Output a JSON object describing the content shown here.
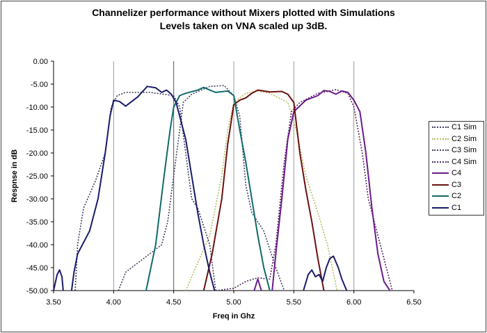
{
  "chart_data": {
    "type": "line",
    "title": [
      "Channelizer performance without Mixers plotted with Simulations",
      "Levels  taken on VNA scaled up 3dB."
    ],
    "xlabel": "Freq in Ghz",
    "ylabel": "Respnse in dB",
    "xlim": [
      3.5,
      6.5
    ],
    "ylim": [
      -50,
      0
    ],
    "xticks": [
      "3.50",
      "4.00",
      "4.50",
      "5.00",
      "5.50",
      "6.00",
      "6.50"
    ],
    "yticks": [
      "0.00",
      "-5.00",
      "-10.00",
      "-15.00",
      "-20.00",
      "-25.00",
      "-30.00",
      "-35.00",
      "-40.00",
      "-45.00",
      "-50.00"
    ],
    "vertical_gridlines": [
      4.0,
      4.5,
      5.0,
      5.5,
      6.0
    ],
    "legend_position": "right",
    "series": [
      {
        "name": "C1 Sim",
        "style": "dotted",
        "color": "#3a3a5a",
        "segments": [
          [
            [
              3.68,
              -50
            ],
            [
              3.7,
              -40
            ],
            [
              3.75,
              -32
            ],
            [
              3.85,
              -26
            ],
            [
              3.93,
              -20
            ],
            [
              3.98,
              -10
            ],
            [
              4.03,
              -7.5
            ],
            [
              4.1,
              -6.8
            ],
            [
              4.3,
              -6.8
            ],
            [
              4.5,
              -7.5
            ],
            [
              4.55,
              -10
            ],
            [
              4.6,
              -20
            ],
            [
              4.65,
              -30
            ],
            [
              4.7,
              -32
            ],
            [
              4.8,
              -40
            ],
            [
              4.85,
              -50
            ]
          ]
        ]
      },
      {
        "name": "C2 Sim",
        "style": "dotted",
        "color": "#b8b860",
        "segments": [
          [
            [
              4.6,
              -50
            ],
            [
              4.7,
              -44
            ],
            [
              4.8,
              -38
            ],
            [
              4.9,
              -25
            ],
            [
              4.95,
              -15
            ],
            [
              5.0,
              -9
            ],
            [
              5.1,
              -7
            ],
            [
              5.2,
              -6.5
            ],
            [
              5.3,
              -7
            ],
            [
              5.45,
              -9
            ],
            [
              5.52,
              -15
            ],
            [
              5.6,
              -25
            ],
            [
              5.7,
              -33
            ],
            [
              5.78,
              -40
            ],
            [
              5.82,
              -45
            ],
            [
              5.86,
              -50
            ]
          ]
        ]
      },
      {
        "name": "C3 Sim",
        "style": "dotted",
        "color": "#404060",
        "segments": [
          [
            [
              4.04,
              -50
            ],
            [
              4.1,
              -46
            ],
            [
              4.2,
              -44
            ],
            [
              4.4,
              -40
            ],
            [
              4.45,
              -35
            ],
            [
              4.55,
              -15
            ],
            [
              4.58,
              -9
            ],
            [
              4.65,
              -7.2
            ],
            [
              4.8,
              -5.5
            ],
            [
              4.92,
              -5.3
            ],
            [
              5.0,
              -7.5
            ],
            [
              5.05,
              -12
            ],
            [
              5.1,
              -27
            ],
            [
              5.15,
              -33
            ],
            [
              5.25,
              -37
            ],
            [
              5.35,
              -45
            ],
            [
              5.42,
              -50
            ]
          ]
        ]
      },
      {
        "name": "C4 Sim",
        "style": "dotted",
        "color": "#502a60",
        "segments": [
          [
            [
              4.85,
              -50
            ],
            [
              5.0,
              -49.5
            ],
            [
              5.1,
              -48
            ],
            [
              5.2,
              -47.2
            ],
            [
              5.3,
              -47.5
            ],
            [
              5.35,
              -40
            ],
            [
              5.42,
              -22
            ],
            [
              5.48,
              -11
            ],
            [
              5.55,
              -9
            ],
            [
              5.7,
              -7
            ],
            [
              5.85,
              -6.2
            ],
            [
              5.95,
              -7
            ],
            [
              6.0,
              -10
            ],
            [
              6.07,
              -20
            ],
            [
              6.12,
              -30
            ],
            [
              6.2,
              -38
            ],
            [
              6.27,
              -45
            ],
            [
              6.32,
              -50
            ]
          ]
        ]
      },
      {
        "name": "C4",
        "style": "solid",
        "color": "#6a1a8a",
        "segments": [
          [
            [
              5.17,
              -50
            ],
            [
              5.2,
              -47.5
            ],
            [
              5.23,
              -50
            ]
          ],
          [
            [
              5.32,
              -50
            ],
            [
              5.35,
              -42
            ],
            [
              5.4,
              -30
            ],
            [
              5.45,
              -17
            ],
            [
              5.5,
              -11
            ],
            [
              5.6,
              -8.5
            ],
            [
              5.7,
              -7.5
            ],
            [
              5.75,
              -6.4
            ],
            [
              5.8,
              -6.6
            ],
            [
              5.85,
              -7.2
            ],
            [
              5.9,
              -6.5
            ],
            [
              5.95,
              -6.8
            ],
            [
              6.0,
              -8.5
            ],
            [
              6.05,
              -11
            ],
            [
              6.1,
              -20
            ],
            [
              6.15,
              -32
            ],
            [
              6.2,
              -42
            ],
            [
              6.25,
              -48
            ],
            [
              6.3,
              -50
            ]
          ]
        ]
      },
      {
        "name": "C3",
        "style": "solid",
        "color": "#6a1010",
        "segments": [
          [
            [
              4.75,
              -50
            ],
            [
              4.82,
              -42
            ],
            [
              4.9,
              -30
            ],
            [
              4.95,
              -18
            ],
            [
              5.0,
              -9.5
            ],
            [
              5.05,
              -8.5
            ],
            [
              5.1,
              -8
            ],
            [
              5.15,
              -7
            ],
            [
              5.2,
              -6.3
            ],
            [
              5.25,
              -6.5
            ],
            [
              5.3,
              -6.7
            ],
            [
              5.4,
              -6.6
            ],
            [
              5.45,
              -7.2
            ],
            [
              5.5,
              -9
            ],
            [
              5.55,
              -20
            ],
            [
              5.6,
              -28
            ],
            [
              5.65,
              -35
            ],
            [
              5.7,
              -43
            ],
            [
              5.75,
              -50
            ]
          ]
        ]
      },
      {
        "name": "C2",
        "style": "solid",
        "color": "#106a6a",
        "segments": [
          [
            [
              4.27,
              -50
            ],
            [
              4.35,
              -40
            ],
            [
              4.42,
              -25
            ],
            [
              4.47,
              -15
            ],
            [
              4.5,
              -10
            ],
            [
              4.55,
              -7.5
            ],
            [
              4.6,
              -7
            ],
            [
              4.7,
              -6.3
            ],
            [
              4.75,
              -5.7
            ],
            [
              4.8,
              -6.3
            ],
            [
              4.85,
              -6.8
            ],
            [
              4.95,
              -6.5
            ],
            [
              5.0,
              -7.5
            ],
            [
              5.05,
              -15
            ],
            [
              5.1,
              -22
            ],
            [
              5.15,
              -30
            ],
            [
              5.2,
              -38
            ],
            [
              5.25,
              -45
            ],
            [
              5.3,
              -50
            ]
          ]
        ]
      },
      {
        "name": "C1",
        "style": "solid",
        "color": "#1a1a6a",
        "segments": [
          [
            [
              3.5,
              -50
            ],
            [
              3.53,
              -46.5
            ],
            [
              3.55,
              -45.5
            ],
            [
              3.57,
              -47
            ],
            [
              3.58,
              -50
            ]
          ],
          [
            [
              3.65,
              -50
            ],
            [
              3.67,
              -46
            ],
            [
              3.7,
              -42
            ],
            [
              3.8,
              -37
            ],
            [
              3.87,
              -30
            ],
            [
              3.93,
              -20
            ],
            [
              3.97,
              -12
            ],
            [
              4.0,
              -8.5
            ],
            [
              4.05,
              -8.8
            ],
            [
              4.1,
              -9.8
            ],
            [
              4.15,
              -8.8
            ],
            [
              4.2,
              -7.8
            ],
            [
              4.28,
              -5.5
            ],
            [
              4.35,
              -5.8
            ],
            [
              4.4,
              -6.8
            ],
            [
              4.44,
              -6.3
            ],
            [
              4.48,
              -7.2
            ],
            [
              4.52,
              -9
            ],
            [
              4.6,
              -17
            ],
            [
              4.65,
              -25
            ],
            [
              4.7,
              -33
            ],
            [
              4.75,
              -40
            ],
            [
              4.8,
              -46
            ],
            [
              4.84,
              -50
            ]
          ],
          [
            [
              5.58,
              -50
            ],
            [
              5.62,
              -46.5
            ],
            [
              5.65,
              -45.5
            ],
            [
              5.68,
              -47
            ],
            [
              5.71,
              -46.5
            ],
            [
              5.74,
              -48
            ],
            [
              5.77,
              -45
            ],
            [
              5.8,
              -43
            ],
            [
              5.83,
              -42.5
            ],
            [
              5.87,
              -45
            ],
            [
              5.9,
              -47.5
            ],
            [
              5.94,
              -50
            ]
          ]
        ]
      }
    ]
  }
}
